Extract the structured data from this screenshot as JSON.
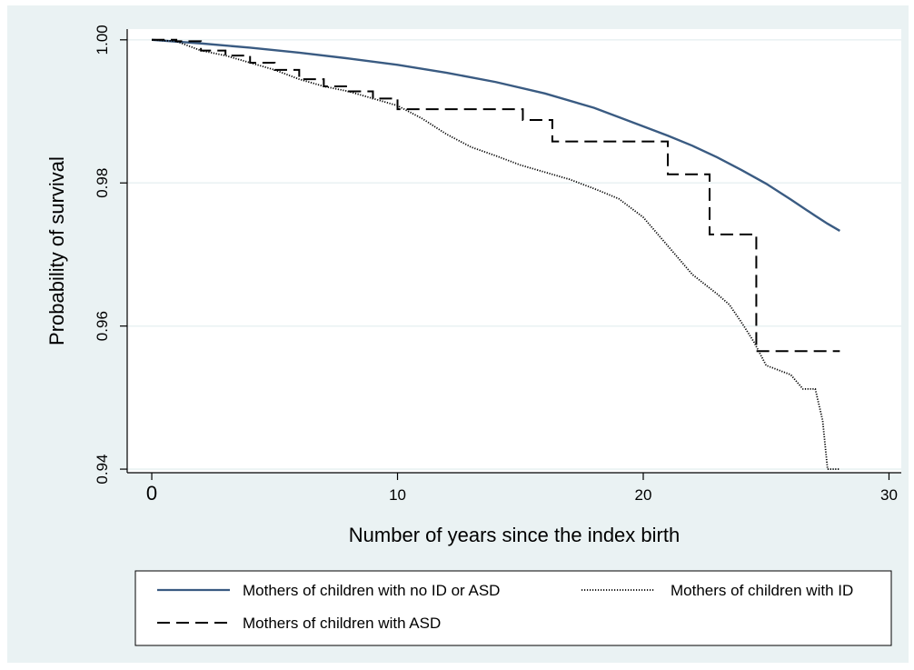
{
  "chart_data": {
    "type": "line",
    "title": "",
    "xlabel": "Number of years since the index birth",
    "ylabel": "Probability of survival",
    "xlim": [
      -1,
      30.5
    ],
    "ylim": [
      0.9395,
      1.0015
    ],
    "xticks": [
      0,
      10,
      20,
      30
    ],
    "xtick_labels": [
      "0",
      "10",
      "20",
      "30"
    ],
    "yticks": [
      0.94,
      0.96,
      0.98,
      1.0
    ],
    "ytick_labels": [
      "0.94",
      "0.96",
      "0.98",
      "1.00"
    ],
    "grid": "horizontal",
    "legend_position": "bottom",
    "series": [
      {
        "name": "Mothers of children with no ID or ASD",
        "style": "solid",
        "color": "#3a5b82",
        "x": [
          0,
          2,
          4,
          6,
          8,
          10,
          12,
          14,
          16,
          18,
          20,
          21,
          22,
          23,
          24,
          25,
          26,
          27,
          27.5,
          28
        ],
        "y": [
          1.0,
          0.9995,
          0.9989,
          0.9982,
          0.9974,
          0.9965,
          0.9954,
          0.9941,
          0.9925,
          0.9905,
          0.9879,
          0.9866,
          0.9852,
          0.9836,
          0.9818,
          0.9799,
          0.9777,
          0.9754,
          0.9743,
          0.9733
        ]
      },
      {
        "name": "Mothers of children with ID",
        "style": "dotted",
        "color": "#000000",
        "x": [
          0,
          1,
          2,
          3,
          4,
          5,
          6,
          7,
          8,
          9,
          10,
          11,
          12,
          13,
          14,
          15,
          16,
          17,
          18,
          19,
          20,
          21,
          22,
          23,
          23.5,
          24,
          24.5,
          25,
          26,
          26.5,
          27,
          27.3,
          27.5,
          28
        ],
        "y": [
          1.0,
          0.9998,
          0.9985,
          0.9978,
          0.9968,
          0.9958,
          0.9945,
          0.9935,
          0.9928,
          0.9918,
          0.9908,
          0.989,
          0.9868,
          0.985,
          0.9838,
          0.9825,
          0.9815,
          0.9805,
          0.9792,
          0.9778,
          0.9752,
          0.9712,
          0.9672,
          0.9645,
          0.963,
          0.9605,
          0.9578,
          0.9545,
          0.9532,
          0.9512,
          0.9512,
          0.9468,
          0.94,
          0.94
        ]
      },
      {
        "name": "Mothers of children with ASD",
        "style": "dashed",
        "color": "#000000",
        "step": true,
        "x": [
          0,
          1,
          2,
          3,
          4,
          5,
          6,
          7,
          8,
          9,
          10,
          15.1,
          16.3,
          21.0,
          22.7,
          24.6,
          28
        ],
        "y": [
          1.0,
          0.9998,
          0.9985,
          0.9978,
          0.9968,
          0.9958,
          0.9945,
          0.9935,
          0.9928,
          0.9918,
          0.9903,
          0.9888,
          0.9858,
          0.9812,
          0.9728,
          0.9565,
          0.9565
        ]
      }
    ]
  }
}
